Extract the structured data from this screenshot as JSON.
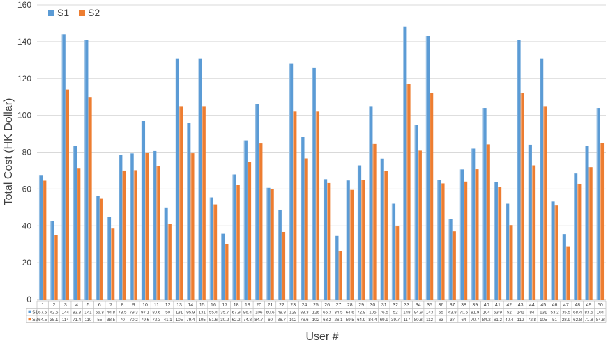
{
  "chart_data": {
    "type": "bar",
    "title": "",
    "xlabel": "User #",
    "ylabel": "Total Cost (HK Dollar)",
    "ylim": [
      0,
      160
    ],
    "yticks": [
      0,
      20,
      40,
      60,
      80,
      100,
      120,
      140,
      160
    ],
    "grid": true,
    "legend": "top-left",
    "categories": [
      "1",
      "2",
      "3",
      "4",
      "5",
      "6",
      "7",
      "8",
      "9",
      "10",
      "11",
      "12",
      "13",
      "14",
      "15",
      "16",
      "17",
      "18",
      "19",
      "20",
      "21",
      "22",
      "23",
      "24",
      "25",
      "26",
      "27",
      "28",
      "29",
      "30",
      "31",
      "32",
      "33",
      "34",
      "35",
      "36",
      "37",
      "38",
      "39",
      "40",
      "41",
      "42",
      "43",
      "44",
      "45",
      "46",
      "47",
      "48",
      "49",
      "50"
    ],
    "series": [
      {
        "name": "S1",
        "color": "#5b9bd5",
        "values": [
          67.6,
          42.5,
          144,
          83.3,
          141,
          56.3,
          44.8,
          78.5,
          79.3,
          97.1,
          80.6,
          50,
          131,
          95.9,
          131,
          55.4,
          35.7,
          67.9,
          86.4,
          106,
          60.6,
          48.8,
          128,
          88.3,
          126,
          65.3,
          34.5,
          64.6,
          72.8,
          105,
          76.5,
          52,
          148,
          94.9,
          143,
          65,
          43.8,
          70.6,
          81.9,
          104,
          63.9,
          52,
          141,
          84,
          131,
          53.2,
          35.5,
          68.4,
          83.5,
          104
        ],
        "labels": [
          "67.6",
          "42.5",
          "144",
          "83.3",
          "141",
          "56.3",
          "44.8",
          "78.5",
          "79.3",
          "97.1",
          "80.6",
          "50",
          "131",
          "95.9",
          "131",
          "55.4",
          "35.7",
          "67.9",
          "86.4",
          "106",
          "60.6",
          "48.8",
          "128",
          "88.3",
          "126",
          "65.3",
          "34.5",
          "64.6",
          "72.8",
          "105",
          "76.5",
          "52",
          "148",
          "94.9",
          "143",
          "65",
          "43.8",
          "70.6",
          "81.9",
          "104",
          "63.9",
          "52",
          "141",
          "84",
          "131",
          "53.2",
          "35.5",
          "68.4",
          "83.5",
          "104"
        ]
      },
      {
        "name": "S2",
        "color": "#ed7d31",
        "values": [
          64.5,
          35.1,
          114,
          71.4,
          110,
          55,
          38.5,
          70,
          70.2,
          79.6,
          72.3,
          41.1,
          105,
          79.4,
          105,
          51.6,
          30.2,
          62.2,
          74.8,
          84.7,
          60,
          36.7,
          102,
          76.6,
          102,
          63.2,
          26.1,
          59.5,
          64.9,
          84.4,
          69.9,
          39.7,
          117,
          80.8,
          112,
          63,
          37,
          64,
          70.7,
          84.2,
          61.2,
          40.4,
          112,
          72.8,
          105,
          51,
          28.9,
          62.8,
          71.8,
          84.8
        ],
        "labels": [
          "64.5",
          "35.1",
          "114",
          "71.4",
          "110",
          "55",
          "38.5",
          "70",
          "70.2",
          "79.6",
          "72.3",
          "41.1",
          "105",
          "79.4",
          "105",
          "51.6",
          "30.2",
          "62.2",
          "74.8",
          "84.7",
          "60",
          "36.7",
          "102",
          "76.6",
          "102",
          "63.2",
          "26.1",
          "59.5",
          "64.9",
          "84.4",
          "69.9",
          "39.7",
          "117",
          "80.8",
          "112",
          "63",
          "37",
          "64",
          "70.7",
          "84.2",
          "61.2",
          "40.4",
          "112",
          "72.8",
          "105",
          "51",
          "28.9",
          "62.8",
          "71.8",
          "84.8"
        ]
      }
    ]
  }
}
